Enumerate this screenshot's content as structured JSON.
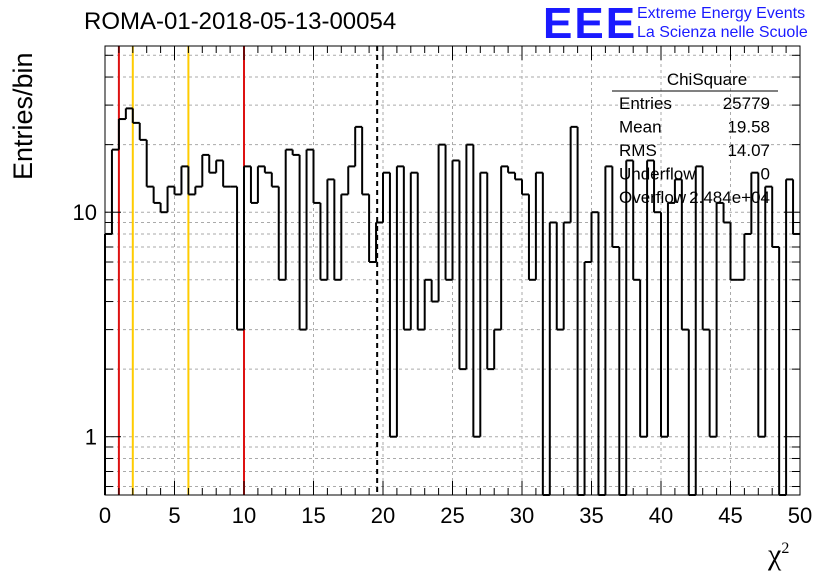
{
  "header": {
    "title": "ROMA-01-2018-05-13-00054",
    "logo_text": "EEE",
    "logo_line1": "Extreme Energy Events",
    "logo_line2": "La Scienza nelle Scuole"
  },
  "stats": {
    "name": "ChiSquare",
    "rows": [
      {
        "label": "Entries",
        "value": "25779"
      },
      {
        "label": "Mean",
        "value": "19.58"
      },
      {
        "label": "RMS",
        "value": "14.07"
      },
      {
        "label": "Underflow",
        "value": "0"
      },
      {
        "label": "Overflow",
        "value": "2.484e+04"
      }
    ]
  },
  "colors": {
    "histogram": "#000000",
    "red_line": "#dd1111",
    "yellow_line": "#ffcc00",
    "grid": "#aaaaaa",
    "logo": "#1a1aff"
  },
  "chart_data": {
    "type": "bar",
    "style": "step-histogram",
    "title": "ROMA-01-2018-05-13-00054",
    "xlabel": "χ",
    "xlabel_superscript": "2",
    "ylabel": "Entries/bin",
    "xlim": [
      0,
      50
    ],
    "ylim": [
      0.55,
      55
    ],
    "yscale": "log",
    "grid": true,
    "x_ticks": [
      0,
      5,
      10,
      15,
      20,
      25,
      30,
      35,
      40,
      45,
      50
    ],
    "y_tick_labels": [
      {
        "value": 1,
        "label": "1"
      },
      {
        "value": 10,
        "label": "10"
      }
    ],
    "bin_width": 0.5,
    "bin_start": 0,
    "values": [
      8,
      19,
      26,
      29,
      25,
      21,
      13,
      11,
      10,
      13,
      12,
      16,
      12,
      13,
      18,
      15,
      17,
      13,
      13,
      3,
      16,
      11,
      16,
      15,
      13,
      5,
      19,
      18,
      3,
      19,
      11,
      5,
      14,
      5,
      12,
      16,
      24,
      12,
      6,
      9,
      15,
      1,
      16,
      3,
      15,
      3,
      5,
      4,
      20,
      5,
      17,
      2,
      20,
      1,
      15,
      2,
      3,
      16,
      15,
      14,
      12,
      5,
      15,
      0,
      9,
      3,
      9,
      24,
      0,
      6,
      10,
      0,
      16,
      7,
      0,
      17,
      5,
      1,
      17,
      10,
      1,
      11,
      14,
      3,
      0,
      16,
      3,
      1,
      11,
      9,
      5,
      5,
      8,
      15,
      1,
      13,
      7,
      0,
      14,
      8,
      0
    ],
    "reference_lines": [
      {
        "x": 1,
        "style": "solid",
        "color": "red"
      },
      {
        "x": 2,
        "style": "solid",
        "color": "yellow"
      },
      {
        "x": 6,
        "style": "solid",
        "color": "yellow"
      },
      {
        "x": 10,
        "style": "solid",
        "color": "red"
      },
      {
        "x": 19.58,
        "style": "dashed",
        "color": "black"
      }
    ]
  }
}
